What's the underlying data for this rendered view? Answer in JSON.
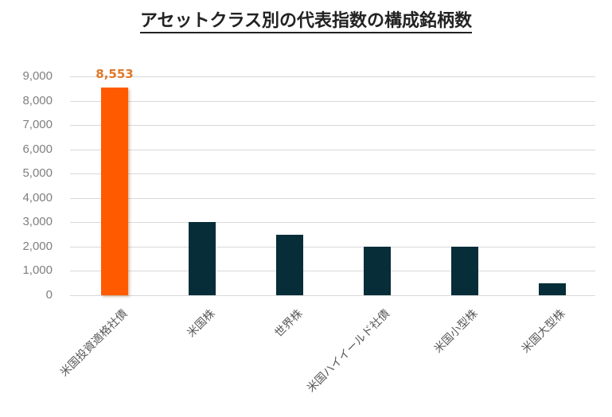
{
  "title": "アセットクラス別の代表指数の構成銘柄数",
  "colors": {
    "highlight": "#ff5a00",
    "default": "#062d38",
    "label": "#e07828",
    "grid": "#d9d9d9"
  },
  "y_ticks": [
    "9,000",
    "8,000",
    "7,000",
    "6,000",
    "5,000",
    "4,000",
    "3,000",
    "2,000",
    "1,000",
    "0"
  ],
  "bars": [
    {
      "label": "米国投資適格社債",
      "value": 8553,
      "value_label": "8,553",
      "highlight": true
    },
    {
      "label": "米国株",
      "value": 3000,
      "value_label": "",
      "highlight": false
    },
    {
      "label": "世界株",
      "value": 2500,
      "value_label": "",
      "highlight": false
    },
    {
      "label": "米国ハイイールド社債",
      "value": 2000,
      "value_label": "",
      "highlight": false
    },
    {
      "label": "米国小型株",
      "value": 2000,
      "value_label": "",
      "highlight": false
    },
    {
      "label": "米国大型株",
      "value": 500,
      "value_label": "",
      "highlight": false
    }
  ],
  "chart_data": {
    "type": "bar",
    "title": "アセットクラス別の代表指数の構成銘柄数",
    "categories": [
      "米国投資適格社債",
      "米国株",
      "世界株",
      "米国ハイイールド社債",
      "米国小型株",
      "米国大型株"
    ],
    "values": [
      8553,
      3000,
      2500,
      2000,
      2000,
      500
    ],
    "data_labels": {
      "米国投資適格社債": "8,553"
    },
    "xlabel": "",
    "ylabel": "",
    "ylim": [
      0,
      9000
    ],
    "yticks": [
      0,
      1000,
      2000,
      3000,
      4000,
      5000,
      6000,
      7000,
      8000,
      9000
    ],
    "grid": "horizontal",
    "legend": "none",
    "x_label_rotation": -45
  }
}
